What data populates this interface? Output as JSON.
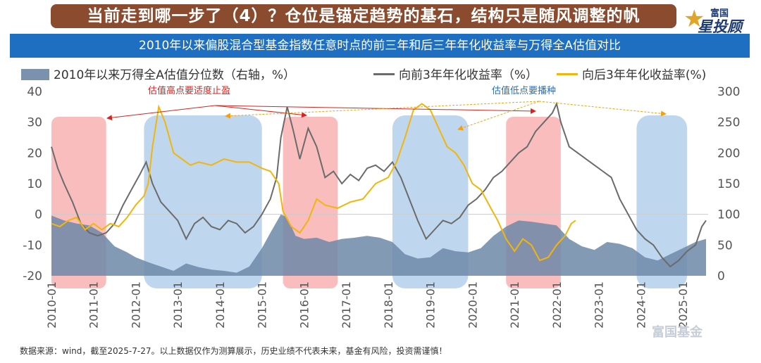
{
  "header": {
    "title": "当前走到哪一步了（4）？仓位是锚定趋势的基石，结构只是随风调整的帆",
    "logo_top": "富国",
    "logo_main": "星投顾"
  },
  "subtitle": "2010年以来偏股混合型基金指数任意时点的前三年和后三年年化收益率与万得全A估值对比",
  "legend": {
    "area": "2010年以来万得全A估值分位数（右轴，%）",
    "line1": "向前3年年化收益率（%）",
    "line2": "向后3年年化收益率(%)"
  },
  "annotations": {
    "high": "估值高点要适度止盈",
    "low": "估值低点要播种"
  },
  "footnote": "数据来源：wind，截至2025-7-27。以上数据仅作为测算展示，历史业绩不代表未来，基金有风险，投资需谨慎！",
  "watermark": "富国基金",
  "colors": {
    "area": "#6d88a8",
    "line_backward": "#6b6b6b",
    "line_forward": "#f2b50c",
    "line_forward_late": "#f28c0c",
    "high_zone": "#f7a7a7",
    "low_zone": "#a9c9e8",
    "annotation_high": "#d9231f",
    "annotation_low": "#1e6fc1"
  },
  "chart_data": {
    "type": "line",
    "y_left": {
      "ylim": [
        -20,
        40
      ],
      "ticks": [
        "40",
        "30",
        "20",
        "10",
        "0",
        "-10",
        "-20"
      ]
    },
    "y_right": {
      "ylim": [
        0,
        300
      ],
      "ticks": [
        "300",
        "250",
        "200",
        "150",
        "100",
        "50",
        "0"
      ]
    },
    "x_ticks": [
      "2010-01",
      "2011-01",
      "2012-01",
      "2013-01",
      "2014-01",
      "2015-01",
      "2016-01",
      "2017-01",
      "2018-01",
      "2019-01",
      "2020-01",
      "2021-01",
      "2022-01",
      "2023-01",
      "2024-01",
      "2025-01"
    ],
    "x_range": [
      2010.0,
      2025.6
    ],
    "high_valuation_zones": [
      [
        2010.0,
        2011.3
      ],
      [
        2015.5,
        2016.8
      ],
      [
        2020.8,
        2022.1
      ]
    ],
    "low_valuation_zones": [
      [
        2012.2,
        2015.0
      ],
      [
        2018.1,
        2019.9
      ],
      [
        2023.9,
        2025.1
      ]
    ],
    "series": [
      {
        "name": "2010年以来万得全A估值分位数（右轴，%）",
        "type": "area",
        "axis": "right",
        "x": [
          2010.0,
          2010.3,
          2010.6,
          2010.9,
          2011.2,
          2011.5,
          2011.8,
          2012.0,
          2012.3,
          2012.6,
          2012.9,
          2013.2,
          2013.5,
          2013.8,
          2014.1,
          2014.4,
          2014.7,
          2015.0,
          2015.2,
          2015.45,
          2015.6,
          2015.8,
          2016.0,
          2016.3,
          2016.6,
          2016.9,
          2017.2,
          2017.5,
          2017.8,
          2018.1,
          2018.4,
          2018.7,
          2019.0,
          2019.3,
          2019.6,
          2019.9,
          2020.2,
          2020.5,
          2020.8,
          2021.1,
          2021.4,
          2021.7,
          2022.0,
          2022.3,
          2022.6,
          2022.9,
          2023.2,
          2023.5,
          2023.8,
          2024.1,
          2024.4,
          2024.7,
          2025.0,
          2025.3,
          2025.55
        ],
        "values": [
          98,
          90,
          85,
          82,
          70,
          48,
          38,
          30,
          22,
          15,
          8,
          20,
          14,
          10,
          8,
          5,
          15,
          45,
          70,
          100,
          95,
          65,
          60,
          62,
          55,
          60,
          62,
          65,
          62,
          55,
          35,
          28,
          30,
          45,
          40,
          38,
          45,
          65,
          80,
          90,
          88,
          85,
          82,
          60,
          48,
          42,
          55,
          52,
          45,
          30,
          25,
          35,
          45,
          55,
          60
        ]
      },
      {
        "name": "向前3年年化收益率（%）",
        "type": "line",
        "axis": "left",
        "x": [
          2010.0,
          2010.15,
          2010.3,
          2010.5,
          2010.7,
          2010.9,
          2011.1,
          2011.3,
          2011.5,
          2011.7,
          2011.9,
          2012.1,
          2012.25,
          2012.4,
          2012.6,
          2012.8,
          2013.0,
          2013.2,
          2013.4,
          2013.6,
          2013.8,
          2014.0,
          2014.2,
          2014.4,
          2014.6,
          2014.8,
          2015.0,
          2015.2,
          2015.35,
          2015.45,
          2015.6,
          2015.75,
          2015.9,
          2016.1,
          2016.3,
          2016.5,
          2016.7,
          2016.9,
          2017.1,
          2017.3,
          2017.5,
          2017.7,
          2017.9,
          2018.1,
          2018.3,
          2018.5,
          2018.7,
          2018.9,
          2019.1,
          2019.3,
          2019.5,
          2019.7,
          2019.9,
          2020.1,
          2020.3,
          2020.5,
          2020.7,
          2020.9,
          2021.1,
          2021.3,
          2021.5,
          2021.7,
          2021.9,
          2022.0,
          2022.1,
          2022.3,
          2022.5,
          2022.7,
          2022.9,
          2023.1,
          2023.3,
          2023.5,
          2023.7,
          2023.9,
          2024.1,
          2024.3,
          2024.5,
          2024.7,
          2024.9,
          2025.1,
          2025.3,
          2025.45,
          2025.55
        ],
        "values": [
          22,
          15,
          10,
          4,
          -3,
          -6,
          -7,
          -6,
          -3,
          3,
          8,
          13,
          17,
          10,
          4,
          1,
          -2,
          -8,
          -3,
          -1,
          -4,
          -5,
          -2,
          -3,
          -6,
          -4,
          0,
          5,
          12,
          25,
          35,
          27,
          18,
          28,
          22,
          12,
          14,
          10,
          13,
          11,
          15,
          16,
          14,
          17,
          12,
          5,
          -2,
          -8,
          -5,
          -2,
          -3,
          -1,
          3,
          5,
          8,
          12,
          14,
          17,
          20,
          22,
          27,
          30,
          33,
          36,
          30,
          22,
          20,
          18,
          16,
          14,
          12,
          5,
          0,
          -5,
          -8,
          -10,
          -14,
          -17,
          -15,
          -12,
          -10,
          -4,
          -2
        ]
      },
      {
        "name": "向后3年年化收益率(%)",
        "type": "line",
        "axis": "left",
        "x": [
          2010.0,
          2010.2,
          2010.4,
          2010.6,
          2010.8,
          2011.0,
          2011.2,
          2011.4,
          2011.6,
          2011.8,
          2012.0,
          2012.2,
          2012.3,
          2012.4,
          2012.55,
          2012.7,
          2012.9,
          2013.1,
          2013.3,
          2013.5,
          2013.8,
          2014.1,
          2014.4,
          2014.7,
          2015.0,
          2015.2,
          2015.4,
          2015.5,
          2015.7,
          2015.9,
          2016.1,
          2016.3,
          2016.5,
          2016.8,
          2017.1,
          2017.4,
          2017.7,
          2018.0,
          2018.2,
          2018.4,
          2018.6,
          2018.8,
          2019.0,
          2019.2,
          2019.4,
          2019.6,
          2019.8,
          2020.0,
          2020.2,
          2020.4,
          2020.6,
          2020.8,
          2021.0,
          2021.2,
          2021.4,
          2021.6,
          2021.8,
          2022.0,
          2022.2,
          2022.35,
          2022.45
        ],
        "values": [
          -3,
          -4,
          -2,
          -1,
          -5,
          -3,
          -5,
          -3,
          -4,
          -1,
          3,
          6,
          10,
          22,
          35,
          30,
          20,
          18,
          16,
          17,
          16,
          18,
          17,
          17,
          15,
          14,
          10,
          1,
          -4,
          -6,
          -2,
          5,
          3,
          2,
          4,
          5,
          10,
          12,
          17,
          25,
          34,
          36,
          34,
          28,
          22,
          20,
          16,
          10,
          8,
          3,
          -2,
          -8,
          -12,
          -8,
          -10,
          -15,
          -14,
          -10,
          -7,
          -3,
          -2
        ]
      }
    ]
  }
}
